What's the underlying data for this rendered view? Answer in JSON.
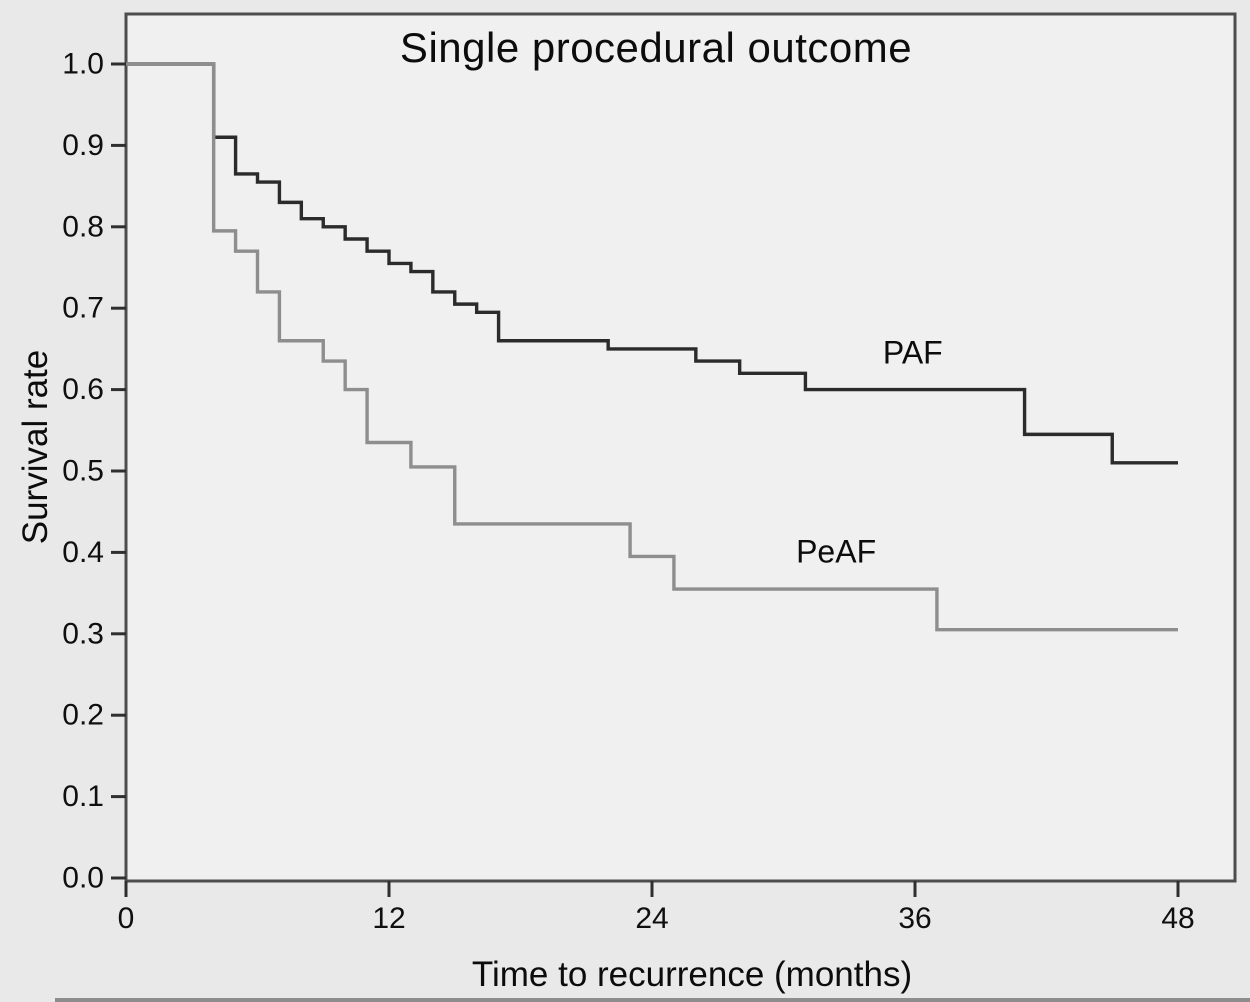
{
  "figure": {
    "title": "Single procedural outcome",
    "x_axis_label": "Time to recurrence (months)",
    "y_axis_label": "Survival rate"
  },
  "chart_data": {
    "type": "line",
    "subtype": "kaplan-meier-step-survival",
    "title": "Single procedural outcome",
    "xlabel": "Time to recurrence (months)",
    "ylabel": "Survival rate",
    "xlim": [
      0,
      48
    ],
    "ylim": [
      0.0,
      1.0
    ],
    "x_ticks": [
      "0",
      "12",
      "24",
      "36",
      "48"
    ],
    "y_ticks": [
      "0.0",
      "0.1",
      "0.2",
      "0.3",
      "0.4",
      "0.5",
      "0.6",
      "0.7",
      "0.8",
      "0.9",
      "1.0"
    ],
    "grid": false,
    "legend_position": "inline-annotations",
    "series": [
      {
        "name": "PAF",
        "color": "#2b2b2b",
        "points": [
          [
            0,
            1.0
          ],
          [
            4,
            0.91
          ],
          [
            5,
            0.865
          ],
          [
            6,
            0.855
          ],
          [
            7,
            0.83
          ],
          [
            8,
            0.81
          ],
          [
            9,
            0.8
          ],
          [
            10,
            0.785
          ],
          [
            11,
            0.77
          ],
          [
            12,
            0.755
          ],
          [
            13,
            0.745
          ],
          [
            14,
            0.72
          ],
          [
            15,
            0.705
          ],
          [
            16,
            0.695
          ],
          [
            17,
            0.66
          ],
          [
            22,
            0.65
          ],
          [
            26,
            0.635
          ],
          [
            28,
            0.62
          ],
          [
            31,
            0.6
          ],
          [
            41,
            0.545
          ],
          [
            45,
            0.51
          ],
          [
            48,
            0.51
          ]
        ]
      },
      {
        "name": "PeAF",
        "color": "#8e8e8e",
        "points": [
          [
            0,
            1.0
          ],
          [
            4,
            0.795
          ],
          [
            5,
            0.77
          ],
          [
            6,
            0.72
          ],
          [
            7,
            0.66
          ],
          [
            9,
            0.635
          ],
          [
            10,
            0.6
          ],
          [
            11,
            0.535
          ],
          [
            13,
            0.505
          ],
          [
            15,
            0.435
          ],
          [
            23,
            0.395
          ],
          [
            25,
            0.355
          ],
          [
            37,
            0.305
          ],
          [
            48,
            0.305
          ]
        ]
      }
    ],
    "annotations": [
      {
        "text": "PAF",
        "x": 35.9,
        "y": 0.645
      },
      {
        "text": "PeAF",
        "x": 32.4,
        "y": 0.4
      }
    ]
  },
  "colors": {
    "background": "#e9e9e9",
    "plot_background": "#f0f0f0",
    "frame": "#4d4d4d",
    "tick": "#2f2f2f",
    "text": "#0f0f0f",
    "paf_line": "#2b2b2b",
    "peaf_line": "#8e8e8e"
  }
}
